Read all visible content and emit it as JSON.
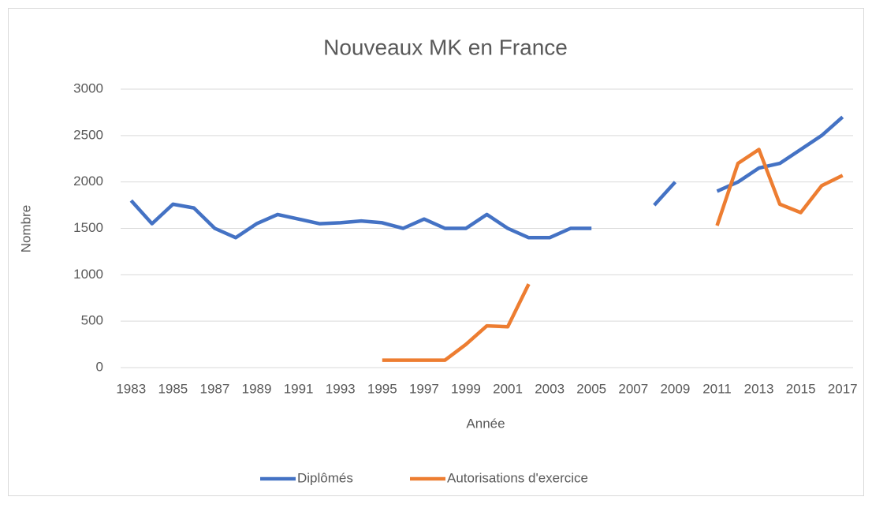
{
  "chart_data": {
    "type": "line",
    "title": "Nouveaux MK en France",
    "x_label": "Année",
    "y_label": "Nombre",
    "categories": [
      "1983",
      null,
      "1985",
      null,
      "1987",
      null,
      "1989",
      null,
      "1991",
      null,
      "1993",
      null,
      "1995",
      null,
      "1997",
      null,
      "1999",
      null,
      "2001",
      null,
      "2003",
      null,
      "2005",
      null,
      "2007",
      null,
      "2009",
      null,
      "2011",
      null,
      "2013",
      null,
      "2015",
      null,
      "2017"
    ],
    "series": [
      {
        "name": "Diplômés",
        "color": "#4472c4",
        "values": [
          1800,
          1550,
          1760,
          1720,
          1500,
          1400,
          1550,
          1650,
          1600,
          1550,
          1560,
          1580,
          1560,
          1500,
          1600,
          1500,
          1500,
          1650,
          1500,
          1400,
          1400,
          1500,
          1500,
          null,
          null,
          1750,
          2000,
          null,
          1900,
          2000,
          2150,
          2200,
          2350,
          2500,
          2700
        ]
      },
      {
        "name": "Autorisations d'exercice",
        "color": "#ed7d31",
        "values": [
          null,
          null,
          null,
          null,
          null,
          null,
          null,
          null,
          null,
          null,
          null,
          null,
          80,
          80,
          80,
          80,
          250,
          450,
          440,
          900,
          null,
          null,
          null,
          null,
          null,
          null,
          null,
          null,
          1530,
          2200,
          2350,
          1760,
          1670,
          1960,
          2070
        ]
      }
    ],
    "ylim": [
      0,
      3000
    ],
    "yticks": [
      0,
      500,
      1000,
      1500,
      2000,
      2500,
      3000
    ],
    "grid": true,
    "legend": "bottom"
  }
}
